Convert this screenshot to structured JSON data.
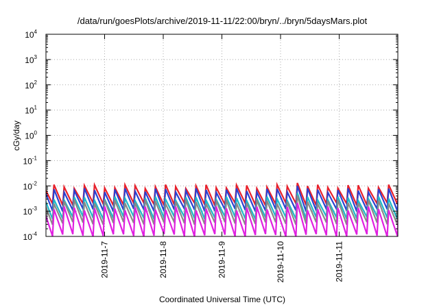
{
  "chart_data": {
    "type": "line",
    "title": "/data/run/goesPlots/archive/2019-11-11/22:00/bryn/../bryn/5daysMars.plot",
    "xlabel": "Coordinated Universal Time (UTC)",
    "ylabel": "cGy/day",
    "xlim": [
      "2019-11-06T00:00",
      "2019-11-12T00:00"
    ],
    "x_ticks": [
      "2019-11-7",
      "2019-11-8",
      "2019-11-9",
      "2019-11-10",
      "2019-11-11"
    ],
    "y_scale": "log",
    "ylim": [
      0.0001,
      10000
    ],
    "y_ticks": [
      {
        "base": "10",
        "exp": "-4"
      },
      {
        "base": "10",
        "exp": "-3"
      },
      {
        "base": "10",
        "exp": "-2"
      },
      {
        "base": "10",
        "exp": "-1"
      },
      {
        "base": "10",
        "exp": "0"
      },
      {
        "base": "10",
        "exp": "1"
      },
      {
        "base": "10",
        "exp": "2"
      },
      {
        "base": "10",
        "exp": "3"
      },
      {
        "base": "10",
        "exp": "4"
      }
    ],
    "grid": true,
    "legend": "none",
    "pattern": "sawtooth",
    "cycle_hours": 4.15,
    "series": [
      {
        "color": "#e8202a",
        "peak": 0.0095,
        "trough": 0.0019
      },
      {
        "color": "#2c3fcf",
        "peak": 0.0068,
        "trough": 0.0011
      },
      {
        "color": "#20b8c8",
        "peak": 0.0032,
        "trough": 0.00055
      },
      {
        "color": "#888888",
        "peak": 0.0024,
        "trough": 0.00033
      },
      {
        "color": "#e020e0",
        "peak": 0.0013,
        "trough": 0.00011
      }
    ]
  }
}
